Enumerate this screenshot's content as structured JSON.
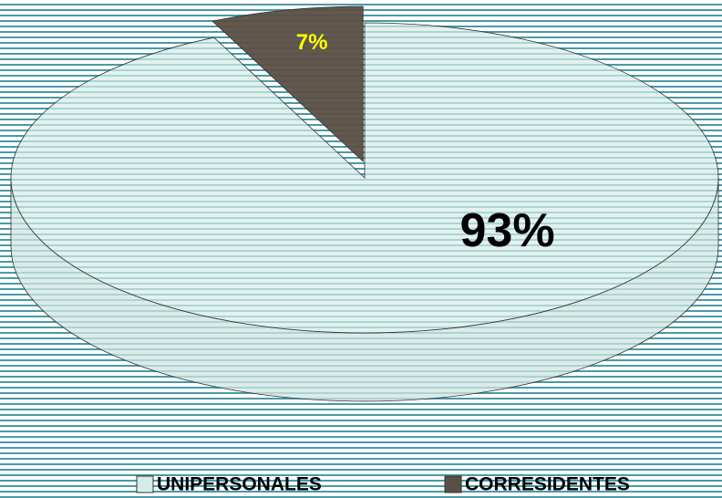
{
  "chart_data": {
    "type": "pie",
    "categories": [
      "UNIPERSONALES",
      "CORRESIDENTES"
    ],
    "values": [
      93,
      7
    ],
    "value_labels": [
      "93%",
      "7%"
    ],
    "colors": [
      "#d6ece8",
      "#5a4f45"
    ],
    "label_colors": [
      "#000000",
      "#ffff00"
    ]
  }
}
